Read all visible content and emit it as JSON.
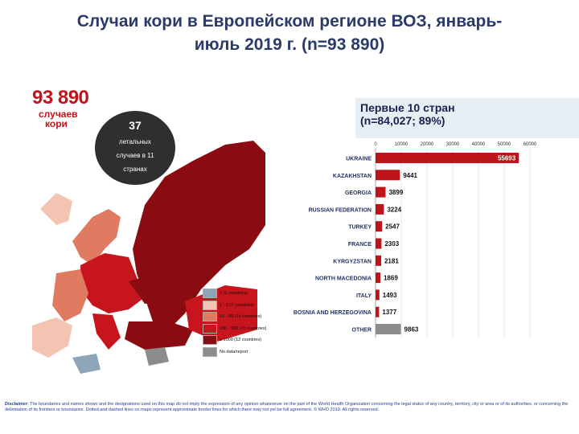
{
  "title": {
    "line1": "Случаи кори в Европейском регионе ВОЗ, январь-",
    "line2": "июль 2019 г. (n=93 890)"
  },
  "total_cases": {
    "number": "93 890",
    "label_line1": "случаев",
    "label_line2": "кори"
  },
  "deaths": {
    "number": "37",
    "line1": "летальных",
    "line2": "случаев в 11",
    "line3": "странах"
  },
  "top10": {
    "title": "Первые 10 стран",
    "subtitle": "(n=84,027; 89%)"
  },
  "legend": {
    "items": [
      {
        "label": "0 (1 countries)",
        "color": "#8ea4b8"
      },
      {
        "label": "1 - 9 (7 countries)",
        "color": "#f4c4b2"
      },
      {
        "label": "10 - 99 (14 countries)",
        "color": "#e07a60"
      },
      {
        "label": "100 - 999 (15 countries)",
        "color": "#c8141c"
      },
      {
        "label": "≥ 1000 (12 countries)",
        "color": "#8a0c12"
      },
      {
        "label": "No data/report",
        "color": "#8c8c8c"
      }
    ]
  },
  "chart_data": {
    "type": "bar",
    "orientation": "horizontal",
    "categories": [
      "UKRAINE",
      "KAZAKHSTAN",
      "GEORGIA",
      "RUSSIAN FEDERATION",
      "TURKEY",
      "FRANCE",
      "KYRGYZSTAN",
      "NORTH MACEDONIA",
      "ITALY",
      "BOSNIA AND HERZEGOVINA",
      "OTHER"
    ],
    "values": [
      55693,
      9441,
      3899,
      3224,
      2547,
      2303,
      2181,
      1869,
      1493,
      1377,
      9863
    ],
    "value_labels": [
      "55693",
      "9441",
      "3899",
      "3224",
      "2547",
      "2303",
      "2181",
      "1869",
      "1493",
      "1377",
      "9863"
    ],
    "x_ticks": [
      "0",
      "10000",
      "20000",
      "30000",
      "40000",
      "50000",
      "60000"
    ],
    "xlim": [
      0,
      60000
    ],
    "bar_color": "#c0141d",
    "other_color": "#8c8c8c"
  },
  "disclaimer": {
    "label": "Disclaimer:",
    "text": "The boundaries and names shown and the designations used on this map do not imply the expression of any opinion whatsoever on the part of the World Health Organization concerning the legal status of any country, territory, city or area or of its authorities, or concerning the delimitation of its frontiers or boundaries. Dotted and dashed lines on maps represent approximate border lines for which there may not yet be full agreement. © WHO 2019. All rights reserved."
  }
}
